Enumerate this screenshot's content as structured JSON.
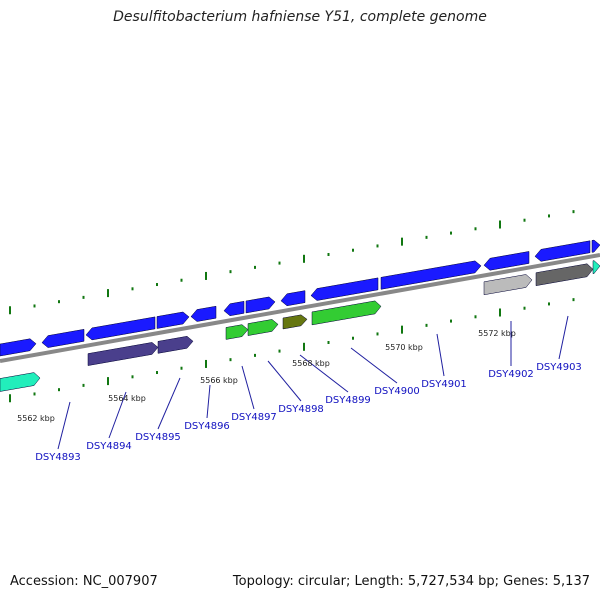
{
  "title": "Desulfitobacterium hafniense Y51, complete genome",
  "accession": "Accession: NC_007907",
  "topology": "Topology: circular; Length: 5,727,534 bp; Genes: 5,137",
  "colors": {
    "forward_gene": "#1a1aff",
    "reverse_gene_green": "#33cc33",
    "reverse_gene_olive": "#667711",
    "reverse_gene_teal": "#22eebb",
    "gene_purple": "#4a3f8c",
    "gene_gray_light": "#bbbbbb",
    "gene_gray_dark": "#666666",
    "backbone": "#888888",
    "tick": "#117711",
    "label": "#1010c0"
  },
  "kbp_labels": [
    "5562 kbp",
    "5564 kbp",
    "5566 kbp",
    "5568 kbp",
    "5570 kbp",
    "5572 kbp"
  ],
  "genes": [
    {
      "name": "DSY4893",
      "label": "DSY4893"
    },
    {
      "name": "DSY4894",
      "label": "DSY4894"
    },
    {
      "name": "DSY4895",
      "label": "DSY4895"
    },
    {
      "name": "DSY4896",
      "label": "DSY4896"
    },
    {
      "name": "DSY4897",
      "label": "DSY4897"
    },
    {
      "name": "DSY4898",
      "label": "DSY4898"
    },
    {
      "name": "DSY4899",
      "label": "DSY4899"
    },
    {
      "name": "DSY4900",
      "label": "DSY4900"
    },
    {
      "name": "DSY4901",
      "label": "DSY4901"
    },
    {
      "name": "DSY4902",
      "label": "DSY4902"
    },
    {
      "name": "DSY4903",
      "label": "DSY4903"
    }
  ]
}
